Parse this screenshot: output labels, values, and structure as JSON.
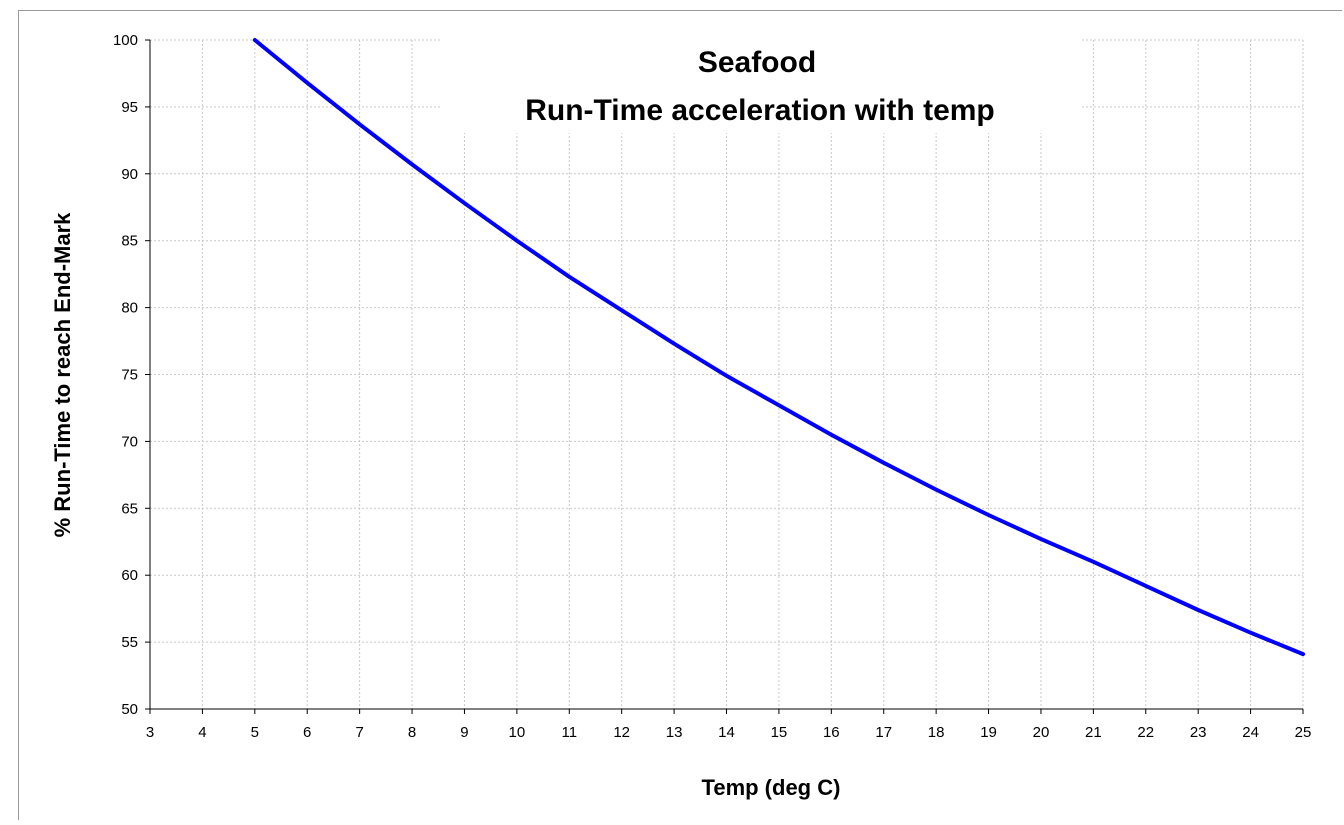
{
  "chart_data": {
    "type": "line",
    "title": [
      "Seafood",
      "Run-Time acceleration  with temp"
    ],
    "xlabel": "Temp (deg C)",
    "ylabel": "% Run-Time to reach End-Mark",
    "xlim": [
      3,
      25
    ],
    "ylim": [
      50,
      100
    ],
    "x_ticks": [
      3,
      4,
      5,
      6,
      7,
      8,
      9,
      10,
      11,
      12,
      13,
      14,
      15,
      16,
      17,
      18,
      19,
      20,
      21,
      22,
      23,
      24,
      25
    ],
    "y_ticks": [
      50,
      55,
      60,
      65,
      70,
      75,
      80,
      85,
      90,
      95,
      100
    ],
    "grid": true,
    "legend": "none",
    "series": [
      {
        "color": "#0000ff",
        "x": [
          5,
          6,
          7,
          8,
          9,
          10,
          11,
          12,
          13,
          14,
          15,
          16,
          17,
          18,
          19,
          20,
          21,
          22,
          23,
          24,
          25
        ],
        "y": [
          100,
          96.8,
          93.7,
          90.7,
          87.8,
          85.0,
          82.3,
          79.8,
          77.3,
          74.9,
          72.7,
          70.5,
          68.4,
          66.4,
          64.5,
          62.7,
          61.0,
          59.2,
          57.4,
          55.7,
          54.1
        ]
      }
    ]
  }
}
